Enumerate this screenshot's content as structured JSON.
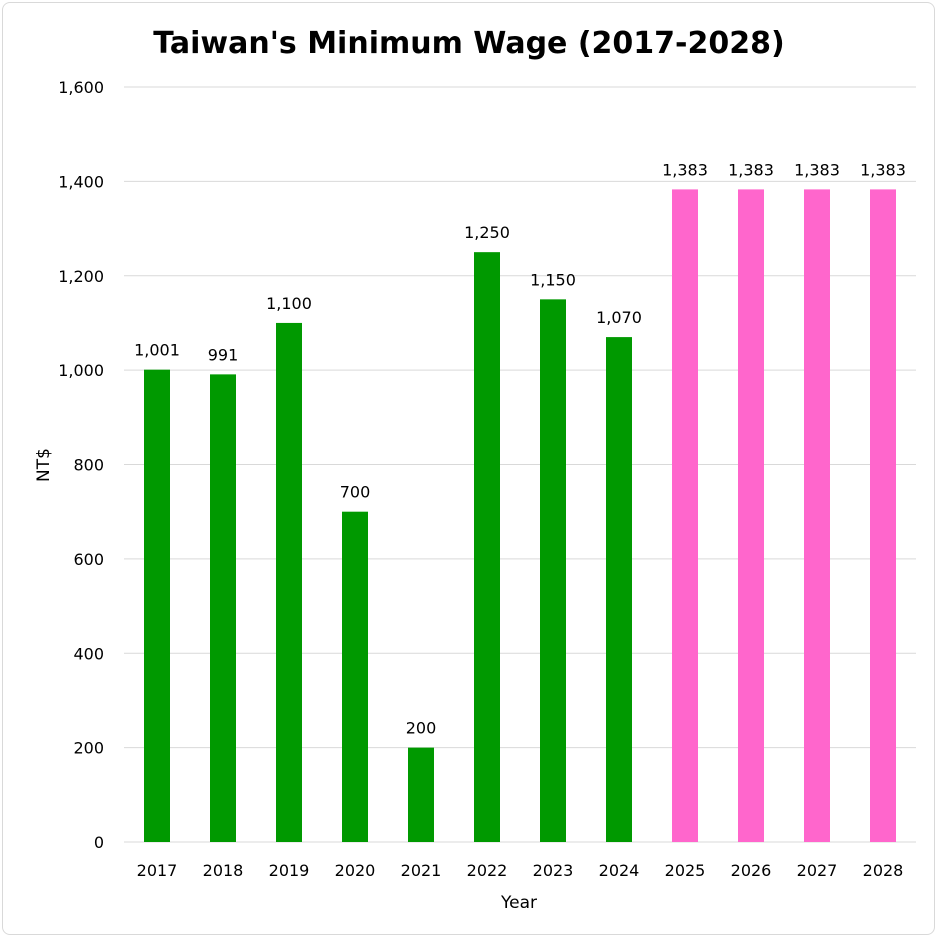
{
  "chart_data": {
    "type": "bar",
    "title": "Taiwan's Minimum Wage (2017-2028)",
    "xlabel": "Year",
    "ylabel": "NT$",
    "ylim": [
      0,
      1600
    ],
    "yticks": [
      0,
      200,
      400,
      600,
      800,
      1000,
      1200,
      1400,
      1600
    ],
    "ytick_labels": [
      "0",
      "200",
      "400",
      "600",
      "800",
      "1,000",
      "1,200",
      "1,400",
      "1,600"
    ],
    "categories": [
      "2017",
      "2018",
      "2019",
      "2020",
      "2021",
      "2022",
      "2023",
      "2024",
      "2025",
      "2026",
      "2027",
      "2028"
    ],
    "values": [
      1001,
      991,
      1100,
      700,
      200,
      1250,
      1150,
      1070,
      1383,
      1383,
      1383,
      1383
    ],
    "value_labels": [
      "1,001",
      "991",
      "1,100",
      "700",
      "200",
      "1,250",
      "1,150",
      "1,070",
      "1,383",
      "1,383",
      "1,383",
      "1,383"
    ],
    "bar_colors": [
      "#009900",
      "#009900",
      "#009900",
      "#009900",
      "#009900",
      "#009900",
      "#009900",
      "#009900",
      "#ff66cc",
      "#ff66cc",
      "#ff66cc",
      "#ff66cc"
    ],
    "grid": true,
    "legend": "none"
  }
}
